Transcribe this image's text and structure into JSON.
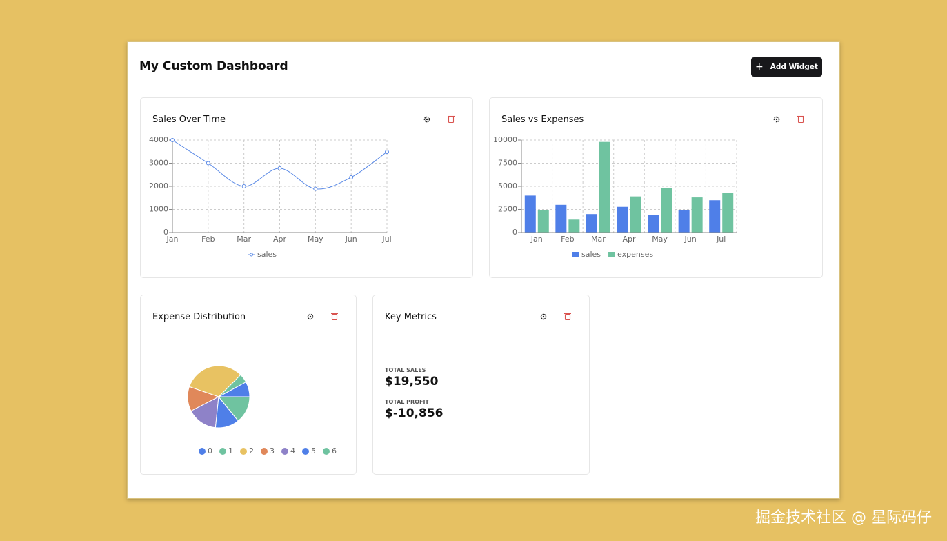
{
  "header": {
    "title": "My Custom Dashboard",
    "button": "Add Widget"
  },
  "widgets": [
    {
      "title": "Sales Over Time",
      "chart_data": {
        "type": "line",
        "categories": [
          "Jan",
          "Feb",
          "Mar",
          "Apr",
          "May",
          "Jun",
          "Jul"
        ],
        "series": [
          {
            "name": "sales",
            "color": "#5b8ae6",
            "values": [
              4000,
              3000,
              2000,
              2780,
              1890,
              2390,
              3490
            ]
          }
        ],
        "ylim": [
          0,
          4000
        ],
        "yticks": [
          0,
          1000,
          2000,
          3000,
          4000
        ],
        "grid": true
      }
    },
    {
      "title": "Sales vs Expenses",
      "chart_data": {
        "type": "bar",
        "categories": [
          "Jan",
          "Feb",
          "Mar",
          "Apr",
          "May",
          "Jun",
          "Jul"
        ],
        "series": [
          {
            "name": "sales",
            "color": "#4f7fe8",
            "values": [
              4000,
              3000,
              2000,
              2780,
              1890,
              2390,
              3490
            ]
          },
          {
            "name": "expenses",
            "color": "#6fc3a0",
            "values": [
              2400,
              1398,
              9800,
              3908,
              4800,
              3800,
              4300
            ]
          }
        ],
        "ylim": [
          0,
          10000
        ],
        "yticks": [
          0,
          2500,
          5000,
          7500,
          10000
        ],
        "grid": true
      }
    },
    {
      "title": "Expense Distribution",
      "chart_data": {
        "type": "pie",
        "categories": [
          "0",
          "1",
          "2",
          "3",
          "4",
          "5",
          "6"
        ],
        "values": [
          2400,
          1398,
          9800,
          3908,
          4800,
          3800,
          4300
        ],
        "colors": [
          "#4f7fe8",
          "#6fc3a0",
          "#e8c262",
          "#e0885a",
          "#8e82c8",
          "#4f7fe8",
          "#6fc3a0"
        ]
      }
    },
    {
      "title": "Key Metrics",
      "metrics": [
        {
          "label": "TOTAL SALES",
          "value": "$19,550"
        },
        {
          "label": "TOTAL PROFIT",
          "value": "$-10,856"
        }
      ]
    }
  ],
  "watermark": "掘金技术社区 @ 星际码仔"
}
